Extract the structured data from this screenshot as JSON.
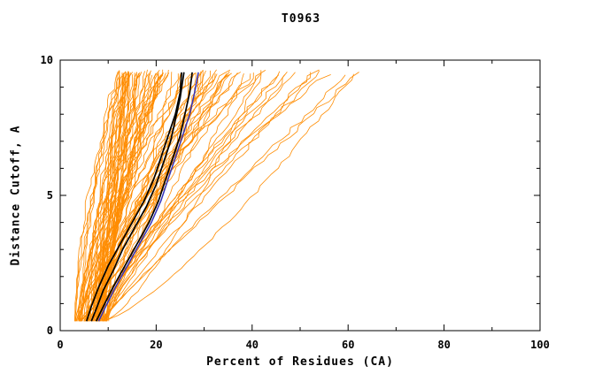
{
  "page": {
    "background": "#ffffff"
  },
  "chart_data": {
    "type": "line",
    "title": "T0963",
    "xlabel": "Percent of Residues (CA)",
    "ylabel": "Distance Cutoff, A",
    "xlim": [
      0,
      100
    ],
    "ylim": [
      0,
      10
    ],
    "x_major_ticks": [
      0,
      20,
      40,
      60,
      80,
      100
    ],
    "x_minor_ticks": [
      10,
      30,
      50,
      70,
      90
    ],
    "y_major_ticks": [
      0,
      5,
      10
    ],
    "y_minor_ticks": [
      1,
      2,
      3,
      4,
      6,
      7,
      8,
      9
    ],
    "grid": false,
    "legend": "none",
    "colors": {
      "ensemble": "#ff8c00",
      "highlight": "#000000",
      "reference": "#3333bb",
      "axis": "#000000"
    },
    "ensemble": {
      "description": "orange model accuracy curves (percent of CA residues under distance cutoff)",
      "count": 95,
      "seed": 7,
      "y_start": 0.35,
      "y_end": 9.55,
      "x_start_range": [
        3,
        10
      ],
      "x_end_range": [
        12,
        63
      ]
    },
    "series": [
      {
        "name": "highlight-black-left",
        "color": "#000000",
        "width": 1.7,
        "points": [
          [
            5.5,
            0.35
          ],
          [
            6.5,
            0.9
          ],
          [
            8,
            1.6
          ],
          [
            10,
            2.4
          ],
          [
            12.5,
            3.2
          ],
          [
            15,
            4.0
          ],
          [
            17.5,
            4.8
          ],
          [
            19.5,
            5.6
          ],
          [
            21,
            6.4
          ],
          [
            22.5,
            7.2
          ],
          [
            24,
            8.0
          ],
          [
            25,
            8.8
          ],
          [
            25.3,
            9.55
          ]
        ]
      },
      {
        "name": "highlight-black-mid",
        "color": "#000000",
        "width": 1.7,
        "points": [
          [
            6.5,
            0.35
          ],
          [
            7.5,
            0.8
          ],
          [
            9,
            1.5
          ],
          [
            11,
            2.2
          ],
          [
            13,
            3.0
          ],
          [
            15.5,
            3.8
          ],
          [
            18,
            4.6
          ],
          [
            20,
            5.4
          ],
          [
            21.5,
            6.2
          ],
          [
            23,
            7.0
          ],
          [
            24,
            7.8
          ],
          [
            25,
            8.6
          ],
          [
            25.5,
            9.2
          ],
          [
            25.8,
            9.55
          ]
        ]
      },
      {
        "name": "highlight-black-right",
        "color": "#000000",
        "width": 1.7,
        "points": [
          [
            7.5,
            0.35
          ],
          [
            9,
            0.9
          ],
          [
            11,
            1.6
          ],
          [
            13.5,
            2.4
          ],
          [
            16,
            3.2
          ],
          [
            18.5,
            4.0
          ],
          [
            20.5,
            4.8
          ],
          [
            22,
            5.6
          ],
          [
            23.5,
            6.4
          ],
          [
            25,
            7.2
          ],
          [
            26,
            8.0
          ],
          [
            27,
            8.8
          ],
          [
            27.5,
            9.55
          ]
        ]
      },
      {
        "name": "reference-blue",
        "color": "#3333bb",
        "width": 1.5,
        "points": [
          [
            8,
            0.35
          ],
          [
            9.5,
            0.9
          ],
          [
            11.5,
            1.6
          ],
          [
            14,
            2.4
          ],
          [
            16.5,
            3.2
          ],
          [
            19,
            4.0
          ],
          [
            21,
            4.8
          ],
          [
            22.5,
            5.6
          ],
          [
            24,
            6.4
          ],
          [
            25.5,
            7.2
          ],
          [
            27,
            8.0
          ],
          [
            28,
            8.8
          ],
          [
            28.8,
            9.55
          ]
        ]
      }
    ]
  }
}
